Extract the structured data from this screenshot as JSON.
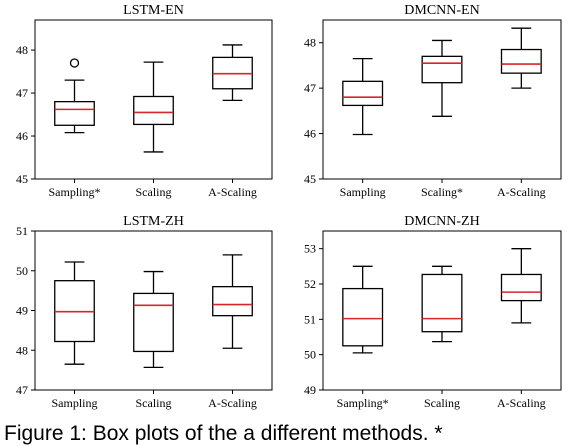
{
  "chart_data": [
    {
      "type": "box",
      "title": "LSTM-EN",
      "categories": [
        "Sampling*",
        "Scaling",
        "A-Scaling"
      ],
      "ylim": [
        45,
        48.7
      ],
      "yticks": [
        45,
        46,
        47,
        48
      ],
      "boxes": [
        {
          "whislo": 46.08,
          "q1": 46.25,
          "med": 46.62,
          "q3": 46.8,
          "whishi": 47.3,
          "fliers": [
            47.7
          ]
        },
        {
          "whislo": 45.63,
          "q1": 46.27,
          "med": 46.55,
          "q3": 46.92,
          "whishi": 47.72,
          "fliers": []
        },
        {
          "whislo": 46.83,
          "q1": 47.1,
          "med": 47.45,
          "q3": 47.83,
          "whishi": 48.12,
          "fliers": []
        }
      ]
    },
    {
      "type": "box",
      "title": "DMCNN-EN",
      "categories": [
        "Sampling",
        "Scaling*",
        "A-Scaling"
      ],
      "ylim": [
        45,
        48.5
      ],
      "yticks": [
        45,
        46,
        47,
        48
      ],
      "boxes": [
        {
          "whislo": 45.98,
          "q1": 46.62,
          "med": 46.8,
          "q3": 47.15,
          "whishi": 47.65,
          "fliers": []
        },
        {
          "whislo": 46.38,
          "q1": 47.12,
          "med": 47.55,
          "q3": 47.7,
          "whishi": 48.05,
          "fliers": []
        },
        {
          "whislo": 47.0,
          "q1": 47.33,
          "med": 47.53,
          "q3": 47.85,
          "whishi": 48.32,
          "fliers": []
        }
      ]
    },
    {
      "type": "box",
      "title": "LSTM-ZH",
      "categories": [
        "Sampling",
        "Scaling",
        "A-Scaling"
      ],
      "ylim": [
        47,
        51
      ],
      "yticks": [
        47,
        48,
        49,
        50,
        51
      ],
      "boxes": [
        {
          "whislo": 47.65,
          "q1": 48.22,
          "med": 48.97,
          "q3": 49.75,
          "whishi": 50.22,
          "fliers": []
        },
        {
          "whislo": 47.57,
          "q1": 47.97,
          "med": 49.13,
          "q3": 49.43,
          "whishi": 49.98,
          "fliers": []
        },
        {
          "whislo": 48.05,
          "q1": 48.87,
          "med": 49.15,
          "q3": 49.6,
          "whishi": 50.4,
          "fliers": []
        }
      ]
    },
    {
      "type": "box",
      "title": "DMCNN-ZH",
      "categories": [
        "Sampling*",
        "Scaling",
        "A-Scaling"
      ],
      "ylim": [
        49,
        53.5
      ],
      "yticks": [
        49,
        50,
        51,
        52,
        53
      ],
      "boxes": [
        {
          "whislo": 50.05,
          "q1": 50.25,
          "med": 51.02,
          "q3": 51.87,
          "whishi": 52.5,
          "fliers": []
        },
        {
          "whislo": 50.37,
          "q1": 50.65,
          "med": 51.02,
          "q3": 52.27,
          "whishi": 52.5,
          "fliers": []
        },
        {
          "whislo": 50.9,
          "q1": 51.53,
          "med": 51.77,
          "q3": 52.27,
          "whishi": 53.0,
          "fliers": []
        }
      ]
    }
  ],
  "caption": "Figure 1:  Box plots of the a different methods. *",
  "colors": {
    "median": "#d62728",
    "box": "#000000"
  }
}
